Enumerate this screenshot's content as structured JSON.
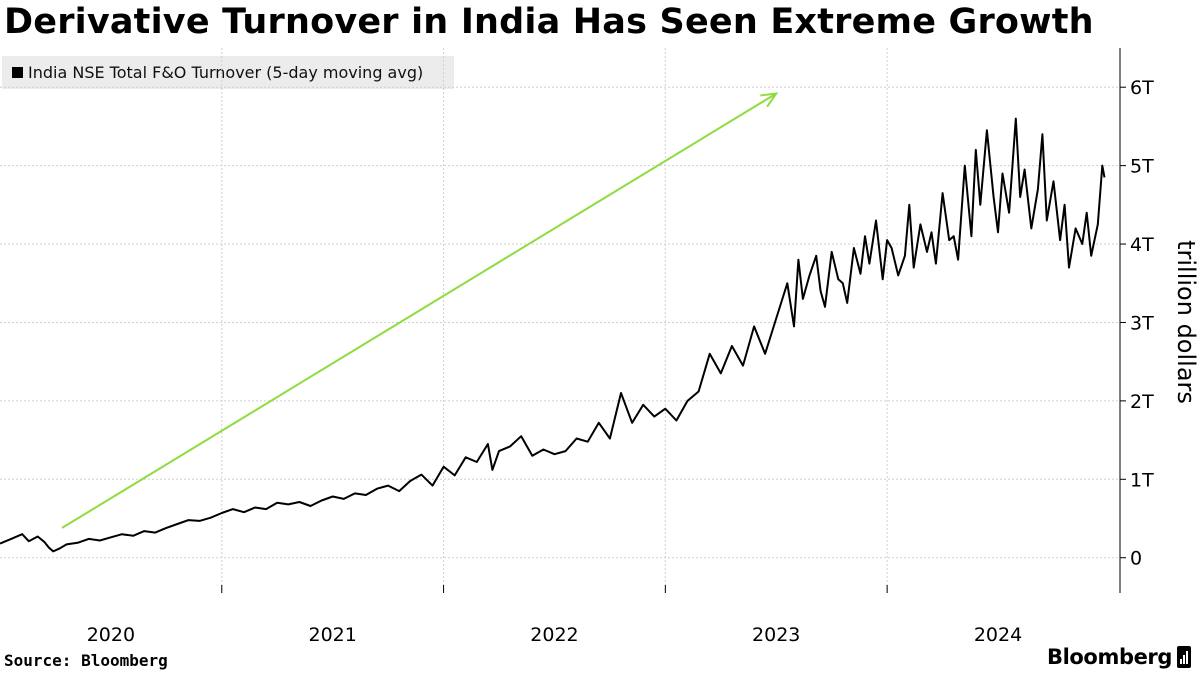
{
  "title": "Derivative Turnover in India Has Seen Extreme Growth",
  "legend": {
    "label": "India NSE Total F&O Turnover (5-day moving avg)"
  },
  "source": "Source: Bloomberg",
  "brand": "Bloomberg",
  "colors": {
    "line": "#000000",
    "arrow": "#8fdc3f",
    "grid": "#cfcfcf",
    "legend_bg": "#ececec"
  },
  "chart_data": {
    "type": "line",
    "title": "Derivative Turnover in India Has Seen Extreme Growth",
    "xlabel": "",
    "ylabel": "trillion dollars",
    "xlim": [
      2019.5,
      2024.55
    ],
    "ylim": [
      -0.45,
      6.5
    ],
    "x_ticks": [
      {
        "value": 2020.0,
        "label": "2020"
      },
      {
        "value": 2021.0,
        "label": "2021"
      },
      {
        "value": 2022.0,
        "label": "2022"
      },
      {
        "value": 2023.0,
        "label": "2023"
      },
      {
        "value": 2024.0,
        "label": "2024"
      }
    ],
    "y_ticks": [
      {
        "value": 0,
        "label": "0"
      },
      {
        "value": 1,
        "label": "1T"
      },
      {
        "value": 2,
        "label": "2T"
      },
      {
        "value": 3,
        "label": "3T"
      },
      {
        "value": 4,
        "label": "4T"
      },
      {
        "value": 5,
        "label": "5T"
      },
      {
        "value": 6,
        "label": "6T"
      }
    ],
    "annotation": {
      "type": "arrow",
      "from": {
        "x": 2019.78,
        "y": 0.38
      },
      "to": {
        "x": 2023.0,
        "y": 5.92
      }
    },
    "series": [
      {
        "name": "India NSE Total F&O Turnover (5-day moving avg)",
        "x": [
          2019.5,
          2019.55,
          2019.6,
          2019.63,
          2019.67,
          2019.7,
          2019.72,
          2019.74,
          2019.77,
          2019.8,
          2019.85,
          2019.9,
          2019.95,
          2020.0,
          2020.05,
          2020.1,
          2020.15,
          2020.2,
          2020.25,
          2020.3,
          2020.35,
          2020.4,
          2020.45,
          2020.5,
          2020.55,
          2020.6,
          2020.65,
          2020.7,
          2020.75,
          2020.8,
          2020.85,
          2020.9,
          2020.95,
          2021.0,
          2021.05,
          2021.1,
          2021.15,
          2021.2,
          2021.25,
          2021.3,
          2021.35,
          2021.4,
          2021.45,
          2021.5,
          2021.55,
          2021.6,
          2021.65,
          2021.7,
          2021.72,
          2021.75,
          2021.8,
          2021.85,
          2021.9,
          2021.95,
          2022.0,
          2022.05,
          2022.1,
          2022.15,
          2022.2,
          2022.25,
          2022.3,
          2022.35,
          2022.4,
          2022.45,
          2022.5,
          2022.55,
          2022.6,
          2022.65,
          2022.7,
          2022.75,
          2022.8,
          2022.85,
          2022.9,
          2022.95,
          2023.0,
          2023.05,
          2023.08,
          2023.1,
          2023.12,
          2023.15,
          2023.18,
          2023.2,
          2023.22,
          2023.25,
          2023.28,
          2023.3,
          2023.32,
          2023.35,
          2023.38,
          2023.4,
          2023.42,
          2023.45,
          2023.48,
          2023.5,
          2023.52,
          2023.55,
          2023.58,
          2023.6,
          2023.62,
          2023.65,
          2023.68,
          2023.7,
          2023.72,
          2023.75,
          2023.78,
          2023.8,
          2023.82,
          2023.85,
          2023.88,
          2023.9,
          2023.92,
          2023.95,
          2023.98,
          2024.0,
          2024.02,
          2024.05,
          2024.08,
          2024.1,
          2024.12,
          2024.15,
          2024.18,
          2024.2,
          2024.22,
          2024.25,
          2024.28,
          2024.3,
          2024.32,
          2024.35,
          2024.38,
          2024.4,
          2024.42,
          2024.45,
          2024.47,
          2024.48
        ],
        "values": [
          0.18,
          0.24,
          0.3,
          0.21,
          0.27,
          0.2,
          0.13,
          0.08,
          0.12,
          0.17,
          0.19,
          0.24,
          0.22,
          0.26,
          0.3,
          0.28,
          0.34,
          0.32,
          0.38,
          0.43,
          0.48,
          0.47,
          0.51,
          0.57,
          0.62,
          0.58,
          0.64,
          0.62,
          0.7,
          0.68,
          0.71,
          0.66,
          0.73,
          0.78,
          0.75,
          0.82,
          0.8,
          0.88,
          0.92,
          0.85,
          0.98,
          1.06,
          0.92,
          1.16,
          1.05,
          1.28,
          1.22,
          1.45,
          1.12,
          1.36,
          1.42,
          1.55,
          1.3,
          1.38,
          1.32,
          1.36,
          1.52,
          1.48,
          1.72,
          1.52,
          2.1,
          1.72,
          1.95,
          1.8,
          1.9,
          1.75,
          2.0,
          2.12,
          2.6,
          2.35,
          2.7,
          2.45,
          2.95,
          2.6,
          3.05,
          3.5,
          2.95,
          3.8,
          3.3,
          3.6,
          3.85,
          3.4,
          3.2,
          3.9,
          3.55,
          3.5,
          3.25,
          3.95,
          3.62,
          4.1,
          3.75,
          4.3,
          3.55,
          4.05,
          3.95,
          3.6,
          3.85,
          4.5,
          3.7,
          4.25,
          3.9,
          4.15,
          3.75,
          4.65,
          4.05,
          4.1,
          3.8,
          5.0,
          4.1,
          5.2,
          4.5,
          5.45,
          4.6,
          4.15,
          4.9,
          4.4,
          5.6,
          4.6,
          4.95,
          4.2,
          4.7,
          5.4,
          4.3,
          4.8,
          4.05,
          4.5,
          3.7,
          4.2,
          4.0,
          4.4,
          3.85,
          4.25,
          5.0,
          4.85
        ]
      }
    ]
  }
}
